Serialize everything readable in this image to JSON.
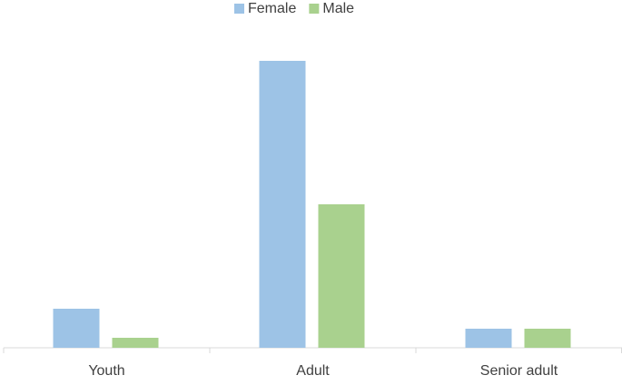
{
  "chart_data": {
    "type": "bar",
    "categories": [
      "Youth",
      "Adult",
      "Senior adult"
    ],
    "series": [
      {
        "name": "Female",
        "color": "#9dc3e6",
        "values": [
          43,
          316,
          21
        ]
      },
      {
        "name": "Male",
        "color": "#a9d18e",
        "values": [
          11,
          158,
          21
        ]
      }
    ],
    "ylim": [
      0,
      340
    ],
    "legend": "top"
  }
}
